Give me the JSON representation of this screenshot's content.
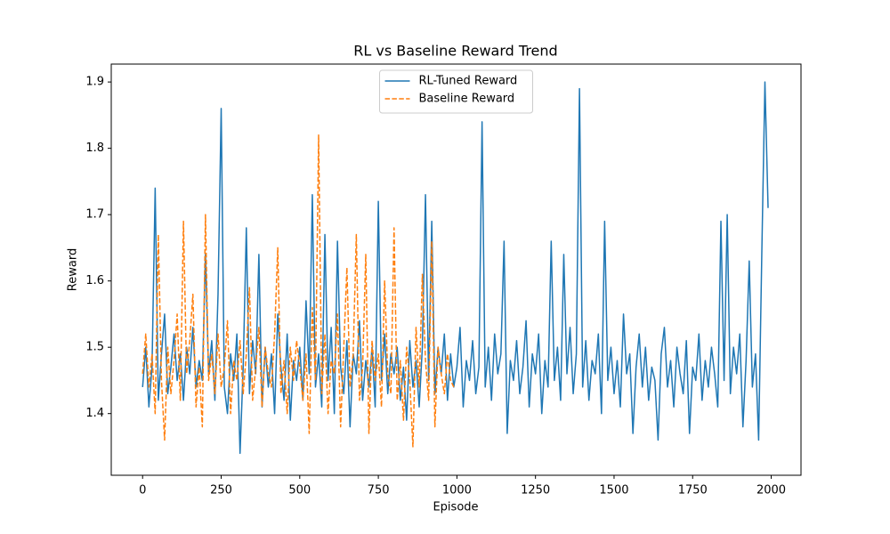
{
  "chart_data": {
    "type": "line",
    "title": "RL vs Baseline Reward Trend",
    "x_label": "Episode",
    "y_label": "Reward",
    "xlim": [
      -99.75,
      2094.75
    ],
    "ylim": [
      1.307,
      1.927
    ],
    "xticks": [
      0,
      250,
      500,
      750,
      1000,
      1250,
      1500,
      1750,
      2000
    ],
    "yticks": [
      1.4,
      1.5,
      1.6,
      1.7,
      1.8,
      1.9
    ],
    "legend": "upper center",
    "series": [
      {
        "name": "RL-Tuned Reward",
        "color": "#1f77b4",
        "linestyle": "solid",
        "x": [
          0,
          10,
          20,
          30,
          40,
          50,
          60,
          70,
          80,
          90,
          100,
          110,
          120,
          130,
          140,
          150,
          160,
          170,
          180,
          190,
          200,
          210,
          220,
          230,
          240,
          250,
          260,
          270,
          280,
          290,
          300,
          310,
          320,
          330,
          340,
          350,
          360,
          370,
          380,
          390,
          400,
          410,
          420,
          430,
          440,
          450,
          460,
          470,
          480,
          490,
          500,
          510,
          520,
          530,
          540,
          550,
          560,
          570,
          580,
          590,
          600,
          610,
          620,
          630,
          640,
          650,
          660,
          670,
          680,
          690,
          700,
          710,
          720,
          730,
          740,
          750,
          760,
          770,
          780,
          790,
          800,
          810,
          820,
          830,
          840,
          850,
          860,
          870,
          880,
          890,
          900,
          910,
          920,
          930,
          940,
          950,
          960,
          970,
          980,
          990,
          1000,
          1010,
          1020,
          1030,
          1040,
          1050,
          1060,
          1070,
          1080,
          1090,
          1100,
          1110,
          1120,
          1130,
          1140,
          1150,
          1160,
          1170,
          1180,
          1190,
          1200,
          1210,
          1220,
          1230,
          1240,
          1250,
          1260,
          1270,
          1280,
          1290,
          1300,
          1310,
          1320,
          1330,
          1340,
          1350,
          1360,
          1370,
          1380,
          1390,
          1400,
          1410,
          1420,
          1430,
          1440,
          1450,
          1460,
          1470,
          1480,
          1490,
          1500,
          1510,
          1520,
          1530,
          1540,
          1550,
          1560,
          1570,
          1580,
          1590,
          1600,
          1610,
          1620,
          1630,
          1640,
          1650,
          1660,
          1670,
          1680,
          1690,
          1700,
          1710,
          1720,
          1730,
          1740,
          1750,
          1760,
          1770,
          1780,
          1790,
          1800,
          1810,
          1820,
          1830,
          1840,
          1850,
          1860,
          1870,
          1880,
          1890,
          1900,
          1910,
          1920,
          1930,
          1940,
          1950,
          1960,
          1970,
          1980,
          1990
        ],
        "values": [
          1.44,
          1.5,
          1.41,
          1.47,
          1.74,
          1.42,
          1.49,
          1.55,
          1.43,
          1.47,
          1.52,
          1.45,
          1.49,
          1.42,
          1.5,
          1.46,
          1.53,
          1.44,
          1.48,
          1.45,
          1.64,
          1.46,
          1.51,
          1.42,
          1.58,
          1.86,
          1.44,
          1.4,
          1.49,
          1.45,
          1.52,
          1.34,
          1.47,
          1.68,
          1.43,
          1.51,
          1.46,
          1.64,
          1.41,
          1.5,
          1.44,
          1.49,
          1.4,
          1.55,
          1.47,
          1.42,
          1.52,
          1.39,
          1.48,
          1.45,
          1.5,
          1.42,
          1.57,
          1.46,
          1.73,
          1.44,
          1.49,
          1.41,
          1.67,
          1.45,
          1.53,
          1.4,
          1.66,
          1.47,
          1.43,
          1.51,
          1.38,
          1.49,
          1.46,
          1.54,
          1.42,
          1.48,
          1.44,
          1.5,
          1.41,
          1.72,
          1.45,
          1.52,
          1.43,
          1.49,
          1.46,
          1.5,
          1.42,
          1.47,
          1.39,
          1.51,
          1.44,
          1.48,
          1.41,
          1.5,
          1.73,
          1.45,
          1.69,
          1.43,
          1.5,
          1.46,
          1.52,
          1.42,
          1.49,
          1.44,
          1.47,
          1.53,
          1.41,
          1.48,
          1.45,
          1.51,
          1.43,
          1.47,
          1.84,
          1.44,
          1.5,
          1.42,
          1.52,
          1.46,
          1.49,
          1.66,
          1.37,
          1.48,
          1.45,
          1.51,
          1.43,
          1.47,
          1.54,
          1.41,
          1.49,
          1.46,
          1.52,
          1.4,
          1.48,
          1.44,
          1.66,
          1.45,
          1.5,
          1.42,
          1.64,
          1.46,
          1.53,
          1.43,
          1.49,
          1.89,
          1.44,
          1.51,
          1.42,
          1.48,
          1.46,
          1.52,
          1.4,
          1.69,
          1.45,
          1.5,
          1.43,
          1.48,
          1.41,
          1.55,
          1.46,
          1.49,
          1.37,
          1.47,
          1.52,
          1.44,
          1.5,
          1.42,
          1.47,
          1.45,
          1.36,
          1.49,
          1.53,
          1.44,
          1.48,
          1.41,
          1.5,
          1.46,
          1.43,
          1.51,
          1.37,
          1.47,
          1.45,
          1.52,
          1.42,
          1.48,
          1.44,
          1.5,
          1.46,
          1.41,
          1.69,
          1.45,
          1.7,
          1.43,
          1.5,
          1.46,
          1.52,
          1.38,
          1.48,
          1.63,
          1.44,
          1.49,
          1.36,
          1.64,
          1.9,
          1.71
        ]
      },
      {
        "name": "Baseline Reward",
        "color": "#ff7f0e",
        "linestyle": "dashed",
        "x": [
          0,
          10,
          20,
          30,
          40,
          50,
          60,
          70,
          80,
          90,
          100,
          110,
          120,
          130,
          140,
          150,
          160,
          170,
          180,
          190,
          200,
          210,
          220,
          230,
          240,
          250,
          260,
          270,
          280,
          290,
          300,
          310,
          320,
          330,
          340,
          350,
          360,
          370,
          380,
          390,
          400,
          410,
          420,
          430,
          440,
          450,
          460,
          470,
          480,
          490,
          500,
          510,
          520,
          530,
          540,
          550,
          560,
          570,
          580,
          590,
          600,
          610,
          620,
          630,
          640,
          650,
          660,
          670,
          680,
          690,
          700,
          710,
          720,
          730,
          740,
          750,
          760,
          770,
          780,
          790,
          800,
          810,
          820,
          830,
          840,
          850,
          860,
          870,
          880,
          890,
          900,
          910,
          920,
          930,
          940,
          950,
          960,
          970,
          980,
          990
        ],
        "values": [
          1.46,
          1.52,
          1.44,
          1.49,
          1.4,
          1.67,
          1.45,
          1.36,
          1.5,
          1.43,
          1.48,
          1.55,
          1.42,
          1.69,
          1.46,
          1.51,
          1.58,
          1.41,
          1.47,
          1.38,
          1.7,
          1.45,
          1.49,
          1.43,
          1.52,
          1.44,
          1.47,
          1.54,
          1.4,
          1.48,
          1.45,
          1.51,
          1.43,
          1.49,
          1.59,
          1.42,
          1.47,
          1.53,
          1.41,
          1.5,
          1.46,
          1.44,
          1.52,
          1.65,
          1.43,
          1.48,
          1.4,
          1.5,
          1.45,
          1.51,
          1.47,
          1.42,
          1.49,
          1.37,
          1.56,
          1.45,
          1.82,
          1.43,
          1.52,
          1.4,
          1.48,
          1.46,
          1.55,
          1.38,
          1.5,
          1.62,
          1.44,
          1.49,
          1.67,
          1.42,
          1.47,
          1.64,
          1.37,
          1.51,
          1.45,
          1.49,
          1.41,
          1.6,
          1.46,
          1.43,
          1.68,
          1.42,
          1.48,
          1.39,
          1.5,
          1.45,
          1.35,
          1.53,
          1.44,
          1.61,
          1.48,
          1.42,
          1.66,
          1.38,
          1.5,
          1.46,
          1.43,
          1.49,
          1.45,
          1.44
        ]
      }
    ]
  }
}
